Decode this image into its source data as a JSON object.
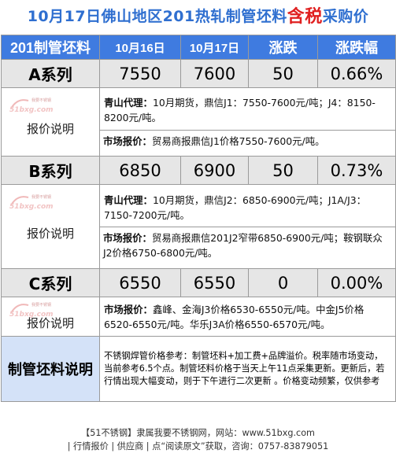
{
  "title": {
    "prefix": "10月17日佛山地区201热轧制管坯料",
    "highlight": "含税",
    "suffix": "采购价"
  },
  "header": {
    "product": "201制管坯料",
    "date1": "10月16日",
    "date2": "10月17日",
    "change": "涨跌",
    "change_pct": "涨跌幅"
  },
  "series": [
    {
      "name": "A系列",
      "price1": "7550",
      "price2": "7600",
      "change": "50",
      "pct": "0.66%",
      "label": "报价说明",
      "note1_key": "青山代理：",
      "note1_text": "10月期货，鼎信J1：7550-7600元/吨；J4：8150-8200元/吨。",
      "note2_key": "市场报价：",
      "note2_text": "贸易商报鼎信J1价格7550-7600元/吨。"
    },
    {
      "name": "B系列",
      "price1": "6850",
      "price2": "6900",
      "change": "50",
      "pct": "0.73%",
      "label": "报价说明",
      "note1_key": "青山代理：",
      "note1_text": "10月期货，鼎信J2：6850-6900元/吨；J1A/J3：7150-7200元/吨。",
      "note2_key": "市场报价：",
      "note2_text": "贸易商报鼎信201J2窄带6850-6900元/吨；鞍钢联众J2价格6750-6800元/吨。"
    },
    {
      "name": "C系列",
      "price1": "6550",
      "price2": "6550",
      "change": "0",
      "pct": "0.00%",
      "label": "报价说明",
      "note2_key": "市场报价：",
      "note2_text": "鑫峰、金海J3价格6530-6550元/吨。中金J5价格6520-6550元/吨。华乐J3A价格6550-6570元/吨。"
    }
  ],
  "watermark": {
    "line1": "我要不锈钢",
    "line2": "51bxg.com"
  },
  "footer": {
    "label": "制管坯料说明",
    "note": "不锈钢焊管价格参考：制管坯料+加工费+品牌溢价。税率随市场变动，当前参考6.5个点。制管坯料价格于当天上午11点采集更新。更新后，若行情出现大幅变动，则于下午进行二次更新 。价格变动频繁，仅供参考"
  },
  "bottom": {
    "line1": "【51不锈钢】隶属我要不锈钢网，网站：www.51bxg.com",
    "line2": "| 行情报价 | 供应商 | 点“阅读原文”获取，咨询：0757-83879051"
  },
  "colors": {
    "header_bg": "#3f7be0",
    "title": "#2f6fd0",
    "highlight": "#e02020",
    "series_bg": "#e6e6e6",
    "footer_bg": "#d4e2f8"
  }
}
